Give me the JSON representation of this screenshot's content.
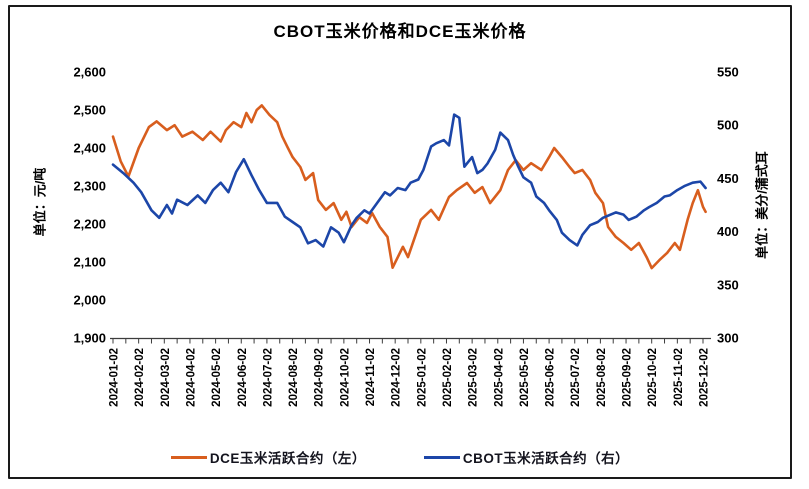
{
  "chart_data": {
    "type": "line",
    "title": "CBOT玉米价格和DCE玉米价格",
    "grid": false,
    "legend_position": "bottom",
    "x_axis": {
      "tick_labels": [
        "2024-01-02",
        "2024-02-02",
        "2024-03-02",
        "2024-04-02",
        "2024-05-02",
        "2024-06-02",
        "2024-07-02",
        "2024-08-02",
        "2024-09-02",
        "2024-10-02",
        "2024-11-02",
        "2024-12-02",
        "2025-01-02",
        "2025-02-02",
        "2025-03-02",
        "2025-04-02",
        "2025-05-02",
        "2025-06-02",
        "2025-07-02",
        "2025-08-02",
        "2025-09-02",
        "2025-10-02",
        "2025-11-02",
        "2025-12-02"
      ],
      "note": "series point x values are months since 2024-01-02 (0 = first tick, 23 = last tick)"
    },
    "left_axis": {
      "unit_label": "单位：元/吨",
      "tick_labels": [
        "2,600",
        "2,500",
        "2,400",
        "2,300",
        "2,200",
        "2,100",
        "2,000",
        "1,900"
      ],
      "min": 1900,
      "max": 2600
    },
    "right_axis": {
      "unit_label": "单位：美分/蒲式耳",
      "tick_labels": [
        "550",
        "500",
        "450",
        "400",
        "350",
        "300"
      ],
      "min": 300,
      "max": 550
    },
    "series": [
      {
        "name": "DCE玉米活跃合约（左）",
        "axis": "left",
        "color": "#D85E1E",
        "points": [
          [
            0,
            2430
          ],
          [
            0.3,
            2365
          ],
          [
            0.6,
            2325
          ],
          [
            1,
            2400
          ],
          [
            1.4,
            2455
          ],
          [
            1.7,
            2470
          ],
          [
            2.1,
            2447
          ],
          [
            2.4,
            2460
          ],
          [
            2.7,
            2430
          ],
          [
            3.1,
            2443
          ],
          [
            3.5,
            2421
          ],
          [
            3.8,
            2443
          ],
          [
            4.2,
            2417
          ],
          [
            4.4,
            2447
          ],
          [
            4.7,
            2468
          ],
          [
            5,
            2455
          ],
          [
            5.2,
            2492
          ],
          [
            5.4,
            2468
          ],
          [
            5.6,
            2500
          ],
          [
            5.8,
            2512
          ],
          [
            6.1,
            2487
          ],
          [
            6.4,
            2468
          ],
          [
            6.6,
            2430
          ],
          [
            6.8,
            2403
          ],
          [
            7,
            2376
          ],
          [
            7.3,
            2350
          ],
          [
            7.5,
            2316
          ],
          [
            7.8,
            2334
          ],
          [
            8,
            2263
          ],
          [
            8.3,
            2237
          ],
          [
            8.6,
            2255
          ],
          [
            8.9,
            2211
          ],
          [
            9.1,
            2232
          ],
          [
            9.3,
            2192
          ],
          [
            9.6,
            2218
          ],
          [
            9.9,
            2203
          ],
          [
            10.1,
            2229
          ],
          [
            10.4,
            2192
          ],
          [
            10.7,
            2166
          ],
          [
            10.9,
            2085
          ],
          [
            11.3,
            2140
          ],
          [
            11.5,
            2113
          ],
          [
            12,
            2211
          ],
          [
            12.4,
            2237
          ],
          [
            12.7,
            2211
          ],
          [
            13.1,
            2271
          ],
          [
            13.4,
            2289
          ],
          [
            13.8,
            2308
          ],
          [
            14.1,
            2282
          ],
          [
            14.4,
            2297
          ],
          [
            14.7,
            2255
          ],
          [
            15.1,
            2289
          ],
          [
            15.4,
            2342
          ],
          [
            15.7,
            2368
          ],
          [
            16,
            2342
          ],
          [
            16.3,
            2360
          ],
          [
            16.7,
            2342
          ],
          [
            17,
            2376
          ],
          [
            17.2,
            2400
          ],
          [
            17.5,
            2376
          ],
          [
            17.8,
            2350
          ],
          [
            18,
            2334
          ],
          [
            18.3,
            2342
          ],
          [
            18.6,
            2316
          ],
          [
            18.8,
            2282
          ],
          [
            19.1,
            2255
          ],
          [
            19.3,
            2192
          ],
          [
            19.6,
            2166
          ],
          [
            19.9,
            2150
          ],
          [
            20.2,
            2132
          ],
          [
            20.5,
            2150
          ],
          [
            20.8,
            2113
          ],
          [
            21,
            2084
          ],
          [
            21.3,
            2105
          ],
          [
            21.6,
            2124
          ],
          [
            21.9,
            2150
          ],
          [
            22.1,
            2132
          ],
          [
            22.4,
            2211
          ],
          [
            22.6,
            2255
          ],
          [
            22.8,
            2289
          ],
          [
            23,
            2245
          ],
          [
            23.1,
            2232
          ]
        ]
      },
      {
        "name": "CBOT玉米活跃合约（右）",
        "axis": "right",
        "color": "#1C46A8",
        "points": [
          [
            0,
            463
          ],
          [
            0.4,
            455
          ],
          [
            0.8,
            446
          ],
          [
            1.1,
            437
          ],
          [
            1.5,
            420
          ],
          [
            1.8,
            413
          ],
          [
            2.1,
            425
          ],
          [
            2.3,
            417
          ],
          [
            2.5,
            430
          ],
          [
            2.9,
            425
          ],
          [
            3.3,
            434
          ],
          [
            3.6,
            427
          ],
          [
            3.9,
            439
          ],
          [
            4.2,
            446
          ],
          [
            4.5,
            437
          ],
          [
            4.8,
            456
          ],
          [
            5.1,
            468
          ],
          [
            5.4,
            453
          ],
          [
            5.7,
            439
          ],
          [
            6,
            427
          ],
          [
            6.4,
            427
          ],
          [
            6.7,
            414
          ],
          [
            7,
            409
          ],
          [
            7.3,
            404
          ],
          [
            7.6,
            389
          ],
          [
            7.9,
            392
          ],
          [
            8.2,
            386
          ],
          [
            8.5,
            404
          ],
          [
            8.8,
            399
          ],
          [
            9,
            390
          ],
          [
            9.3,
            406
          ],
          [
            9.5,
            413
          ],
          [
            9.8,
            420
          ],
          [
            10,
            417
          ],
          [
            10.3,
            427
          ],
          [
            10.6,
            437
          ],
          [
            10.8,
            434
          ],
          [
            11.1,
            441
          ],
          [
            11.4,
            439
          ],
          [
            11.6,
            446
          ],
          [
            11.9,
            449
          ],
          [
            12.1,
            458
          ],
          [
            12.4,
            480
          ],
          [
            12.6,
            483
          ],
          [
            12.9,
            486
          ],
          [
            13.1,
            481
          ],
          [
            13.3,
            510
          ],
          [
            13.5,
            507
          ],
          [
            13.7,
            461
          ],
          [
            14,
            470
          ],
          [
            14.2,
            455
          ],
          [
            14.4,
            458
          ],
          [
            14.6,
            464
          ],
          [
            14.9,
            477
          ],
          [
            15.1,
            493
          ],
          [
            15.4,
            486
          ],
          [
            15.6,
            472
          ],
          [
            15.8,
            461
          ],
          [
            16,
            451
          ],
          [
            16.3,
            446
          ],
          [
            16.5,
            433
          ],
          [
            16.8,
            427
          ],
          [
            17,
            420
          ],
          [
            17.3,
            411
          ],
          [
            17.5,
            399
          ],
          [
            17.8,
            392
          ],
          [
            18.1,
            387
          ],
          [
            18.3,
            397
          ],
          [
            18.6,
            406
          ],
          [
            18.9,
            409
          ],
          [
            19.1,
            413
          ],
          [
            19.4,
            416
          ],
          [
            19.6,
            418
          ],
          [
            19.9,
            416
          ],
          [
            20.1,
            411
          ],
          [
            20.4,
            414
          ],
          [
            20.7,
            420
          ],
          [
            20.9,
            423
          ],
          [
            21.2,
            427
          ],
          [
            21.5,
            433
          ],
          [
            21.7,
            434
          ],
          [
            22,
            439
          ],
          [
            22.3,
            443
          ],
          [
            22.6,
            446
          ],
          [
            22.9,
            447
          ],
          [
            23.1,
            441
          ]
        ]
      }
    ]
  },
  "colors": {
    "frame_border": "#1A1A1A",
    "axis_line": "#3c3c3c",
    "tick_text": "#000000"
  }
}
